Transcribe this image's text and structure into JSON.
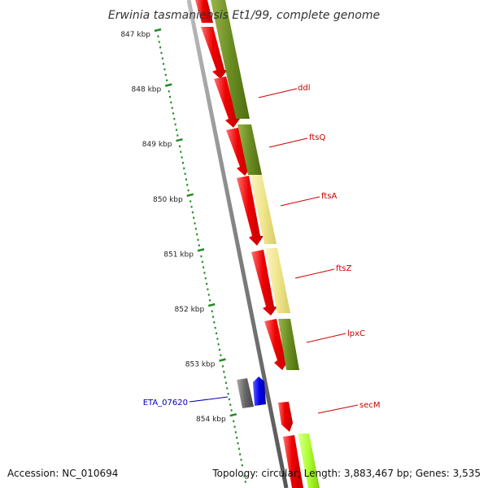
{
  "title": "Erwinia tasmaniensis Et1/99, complete genome",
  "accession": "Accession: NC_010694",
  "summary": "Topology: circular; Length: 3,883,467 bp; Genes: 3,535",
  "ticks": [
    "847 kbp",
    "848 kbp",
    "849 kbp",
    "850 kbp",
    "851 kbp",
    "852 kbp",
    "853 kbp",
    "854 kbp"
  ],
  "genes": [
    "ddl",
    "ftsQ",
    "ftsA",
    "ftsZ",
    "lpxC",
    "secM"
  ],
  "other_gene": "ETA_07620",
  "colors": {
    "cds": "#ee0000",
    "cog_olive": "#6b8e23",
    "cog_yellow": "#f0e68c",
    "cog_lime": "#adff2f",
    "other": "#0000ee",
    "other_gray": "#666666",
    "backbone": "#808080",
    "ticks": "#228b22",
    "label_red": "#cc0000",
    "label_blue": "#0000aa"
  }
}
